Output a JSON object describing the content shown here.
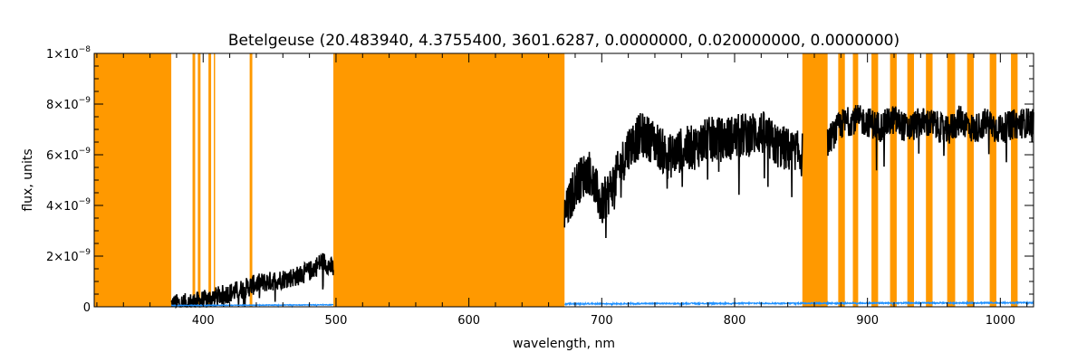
{
  "chart_data": {
    "type": "line",
    "title": "Betelgeuse    (20.483940, 4.3755400, 3601.6287, 0.0000000, 0.020000000, 0.0000000)",
    "xlabel": "wavelength, nm",
    "ylabel": "flux, units",
    "xlim": [
      318,
      1025
    ],
    "ylim": [
      0,
      1e-08
    ],
    "x_ticks": [
      {
        "value": 400,
        "label": "400"
      },
      {
        "value": 500,
        "label": "500"
      },
      {
        "value": 600,
        "label": "600"
      },
      {
        "value": 700,
        "label": "700"
      },
      {
        "value": 800,
        "label": "800"
      },
      {
        "value": 900,
        "label": "900"
      },
      {
        "value": 1000,
        "label": "1000"
      }
    ],
    "y_ticks": [
      {
        "value": 0,
        "mant": "0",
        "exp": ""
      },
      {
        "value": 2e-09,
        "mant": "2×10",
        "exp": "−9"
      },
      {
        "value": 4e-09,
        "mant": "4×10",
        "exp": "−9"
      },
      {
        "value": 6e-09,
        "mant": "6×10",
        "exp": "−9"
      },
      {
        "value": 8e-09,
        "mant": "8×10",
        "exp": "−9"
      },
      {
        "value": 1e-08,
        "mant": "1×10",
        "exp": "−8"
      }
    ],
    "masked_ranges": [
      [
        318,
        376
      ],
      [
        392,
        394
      ],
      [
        396,
        398
      ],
      [
        404,
        406
      ],
      [
        408,
        409
      ],
      [
        435,
        437
      ],
      [
        498,
        672
      ],
      [
        851,
        870
      ],
      [
        878,
        883
      ],
      [
        889,
        893
      ],
      [
        903,
        908
      ],
      [
        917,
        922
      ],
      [
        930,
        935
      ],
      [
        944,
        949
      ],
      [
        960,
        966
      ],
      [
        975,
        980
      ],
      [
        992,
        997
      ],
      [
        1008,
        1013
      ]
    ],
    "series": [
      {
        "color": "#000000",
        "segments": [
          {
            "x": [
              376,
              390,
              400,
              410,
              420,
              430,
              440,
              450,
              460,
              470,
              480,
              490,
              498
            ],
            "y": [
              1e-10,
              1.5e-10,
              2.5e-10,
              4e-10,
              5.5e-10,
              7e-10,
              9e-10,
              1e-09,
              1.1e-09,
              1.2e-09,
              1.4e-09,
              1.8e-09,
              1.5e-09
            ],
            "noise": 8e-10
          },
          {
            "x": [
              672,
              680,
              690,
              700,
              710,
              720,
              730,
              740,
              750,
              760,
              770,
              780,
              790,
              800,
              810,
              820,
              830,
              840,
              851
            ],
            "y": [
              3.5e-09,
              4.8e-09,
              5.4e-09,
              4e-09,
              5e-09,
              6.3e-09,
              6.8e-09,
              6.5e-09,
              5.9e-09,
              6.2e-09,
              6.3e-09,
              6.6e-09,
              6.6e-09,
              6.7e-09,
              6.8e-09,
              6.9e-09,
              6.4e-09,
              6.2e-09,
              6e-09
            ],
            "noise": 1.8e-09
          },
          {
            "x": [
              870,
              880,
              890,
              900,
              910,
              920,
              930,
              940,
              950,
              960,
              970,
              980,
              990,
              1000,
              1010,
              1025
            ],
            "y": [
              6.5e-09,
              7.2e-09,
              7.4e-09,
              7.3e-09,
              7.1e-09,
              7.4e-09,
              7e-09,
              7.3e-09,
              7.2e-09,
              6.9e-09,
              7.4e-09,
              7e-09,
              7.3e-09,
              7e-09,
              7.2e-09,
              7.3e-09
            ],
            "noise": 1.2e-09
          }
        ]
      },
      {
        "color": "#1e90ff",
        "segments": [
          {
            "x": [
              376,
              498
            ],
            "y": [
              5e-11,
              8e-11
            ],
            "noise": 3e-11
          },
          {
            "x": [
              672,
              1025
            ],
            "y": [
              1.2e-10,
              1.6e-10
            ],
            "noise": 5e-11
          }
        ]
      }
    ],
    "mask_color": "#ff9900",
    "grid": false,
    "legend": "none"
  }
}
